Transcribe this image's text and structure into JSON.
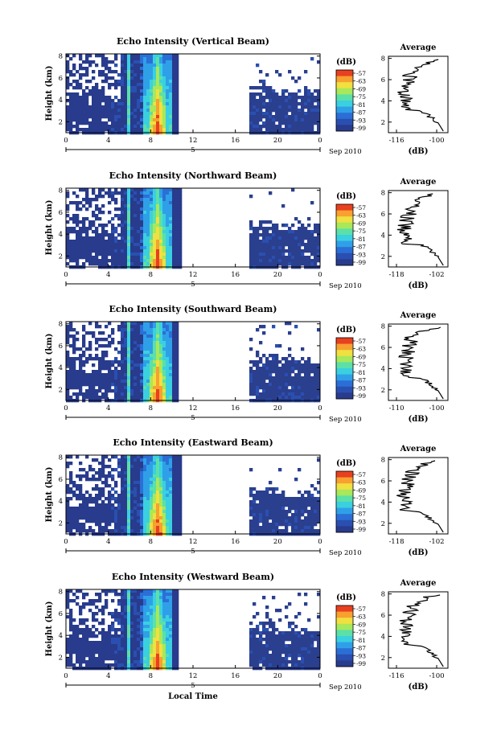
{
  "chart_data": [
    {
      "type": "heatmap",
      "title": "Echo Intensity (Vertical Beam)",
      "ylabel": "Height (km)",
      "xlabel": "",
      "x_ticks": [
        "0",
        "4",
        "8",
        "12",
        "16",
        "20",
        "0"
      ],
      "date_marker": "5",
      "date_label": "Sep 2010",
      "y_ticks": [
        "2",
        "4",
        "6",
        "8"
      ],
      "colorbar": {
        "unit": "(dB)",
        "ticks": [
          "-57",
          "-63",
          "-69",
          "-75",
          "-81",
          "-87",
          "-93",
          "-99"
        ]
      },
      "profile": {
        "title": "Average",
        "xlabel": "(dB)",
        "x_ticks": [
          "-116",
          "-100"
        ],
        "y_ticks": [
          "2",
          "4",
          "6",
          "8"
        ]
      }
    },
    {
      "type": "heatmap",
      "title": "Echo Intensity (Northward Beam)",
      "ylabel": "Height (km)",
      "xlabel": "",
      "x_ticks": [
        "0",
        "4",
        "8",
        "12",
        "16",
        "20",
        "0"
      ],
      "date_marker": "5",
      "date_label": "Sep 2010",
      "y_ticks": [
        "2",
        "4",
        "6",
        "8"
      ],
      "colorbar": {
        "unit": "(dB)",
        "ticks": [
          "-57",
          "-63",
          "-69",
          "-75",
          "-81",
          "-87",
          "-93",
          "-99"
        ]
      },
      "profile": {
        "title": "Average",
        "xlabel": "(dB)",
        "x_ticks": [
          "-118",
          "-102"
        ],
        "y_ticks": [
          "2",
          "4",
          "6",
          "8"
        ]
      }
    },
    {
      "type": "heatmap",
      "title": "Echo Intensity (Southward Beam)",
      "ylabel": "Height (km)",
      "xlabel": "",
      "x_ticks": [
        "0",
        "4",
        "8",
        "12",
        "16",
        "20",
        "0"
      ],
      "date_marker": "5",
      "date_label": "Sep 2010",
      "y_ticks": [
        "2",
        "4",
        "6",
        "8"
      ],
      "colorbar": {
        "unit": "(dB)",
        "ticks": [
          "-57",
          "-63",
          "-69",
          "-75",
          "-81",
          "-87",
          "-93",
          "-99"
        ]
      },
      "profile": {
        "title": "Average",
        "xlabel": "(dB)",
        "x_ticks": [
          "-110",
          "-100"
        ],
        "y_ticks": [
          "2",
          "4",
          "6",
          "8"
        ]
      }
    },
    {
      "type": "heatmap",
      "title": "Echo Intensity (Eastward Beam)",
      "ylabel": "Height (km)",
      "xlabel": "",
      "x_ticks": [
        "0",
        "4",
        "8",
        "12",
        "16",
        "20",
        "0"
      ],
      "date_marker": "5",
      "date_label": "Sep 2010",
      "y_ticks": [
        "2",
        "4",
        "6",
        "8"
      ],
      "colorbar": {
        "unit": "(dB)",
        "ticks": [
          "-57",
          "-63",
          "-69",
          "-75",
          "-81",
          "-87",
          "-93",
          "-99"
        ]
      },
      "profile": {
        "title": "Average",
        "xlabel": "(dB)",
        "x_ticks": [
          "-118",
          "-102"
        ],
        "y_ticks": [
          "2",
          "4",
          "6",
          "8"
        ]
      }
    },
    {
      "type": "heatmap",
      "title": "Echo Intensity (Westward Beam)",
      "ylabel": "Height (km)",
      "xlabel": "Local Time",
      "x_ticks": [
        "0",
        "4",
        "8",
        "12",
        "16",
        "20",
        "0"
      ],
      "date_marker": "5",
      "date_label": "Sep 2010",
      "y_ticks": [
        "2",
        "4",
        "6",
        "8"
      ],
      "colorbar": {
        "unit": "(dB)",
        "ticks": [
          "-57",
          "-63",
          "-69",
          "-75",
          "-81",
          "-87",
          "-93",
          "-99"
        ]
      },
      "profile": {
        "title": "Average",
        "xlabel": "(dB)",
        "x_ticks": [
          "-116",
          "-100"
        ],
        "y_ticks": [
          "2",
          "4",
          "6",
          "8"
        ]
      }
    }
  ],
  "colors": {
    "background_field": "#2b3f8f",
    "colormap": [
      "#283b8c",
      "#2a4fb0",
      "#2b6fd6",
      "#2fa0e8",
      "#3ad0e0",
      "#5be0a8",
      "#a8e85a",
      "#f0e040",
      "#f8a030",
      "#e84020"
    ]
  }
}
